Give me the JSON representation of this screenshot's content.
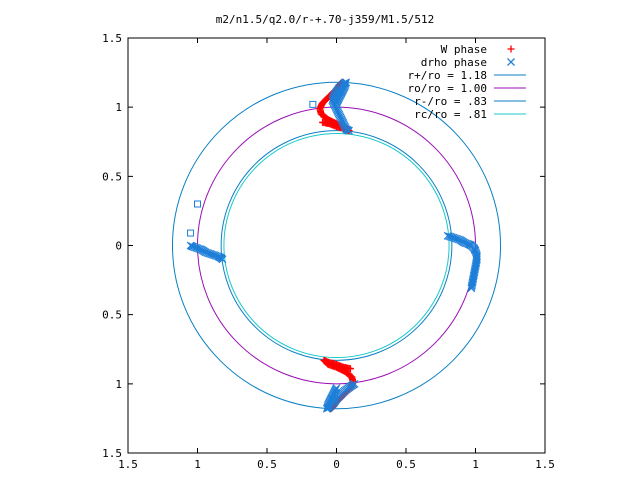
{
  "chart_data": {
    "type": "scatter",
    "title": "m2/n1.5/q2.0/r-+.70-j359/M1.5/512",
    "xlabel": "",
    "ylabel": "",
    "xlim": [
      -1.5,
      1.5
    ],
    "ylim": [
      -1.5,
      1.5
    ],
    "x_tick_labels": [
      "1.5",
      "1",
      "0.5",
      "0",
      "0.5",
      "1",
      "1.5"
    ],
    "y_tick_labels": [
      "1.5",
      "1",
      "0.5",
      "0",
      "0.5",
      "1",
      "1.5"
    ],
    "grid": false,
    "legend_position": "top-right",
    "circles": [
      {
        "name": "r+/ro = 1.18",
        "radius": 1.18,
        "color": "#0a7fc4"
      },
      {
        "name": "ro/ro = 1.00",
        "radius": 1.0,
        "color": "#9b0fb5"
      },
      {
        "name": "r-/ro = .83",
        "radius": 0.83,
        "color": "#0a7fc4"
      },
      {
        "name": "rc/ro = .81",
        "radius": 0.81,
        "color": "#18c8c8"
      }
    ],
    "series": [
      {
        "name": "W phase",
        "marker": "+",
        "color": "#ff0000",
        "segments": [
          [
            [
              -0.1,
              0.89
            ],
            [
              -0.05,
              0.88
            ],
            [
              0.0,
              0.86
            ],
            [
              0.04,
              0.85
            ],
            [
              0.07,
              0.84
            ],
            [
              0.09,
              0.83
            ],
            [
              0.06,
              0.86
            ],
            [
              0.0,
              0.88
            ],
            [
              -0.06,
              0.91
            ],
            [
              -0.11,
              0.95
            ],
            [
              -0.12,
              0.99
            ],
            [
              -0.1,
              1.03
            ],
            [
              -0.06,
              1.07
            ],
            [
              -0.02,
              1.11
            ],
            [
              0.01,
              1.14
            ],
            [
              0.03,
              1.17
            ],
            [
              0.04,
              1.18
            ]
          ],
          [
            [
              0.1,
              -0.89
            ],
            [
              0.05,
              -0.88
            ],
            [
              0.0,
              -0.86
            ],
            [
              -0.04,
              -0.85
            ],
            [
              -0.07,
              -0.84
            ],
            [
              -0.09,
              -0.83
            ],
            [
              -0.06,
              -0.86
            ],
            [
              0.0,
              -0.88
            ],
            [
              0.06,
              -0.91
            ],
            [
              0.11,
              -0.95
            ],
            [
              0.12,
              -0.99
            ],
            [
              0.1,
              -1.03
            ],
            [
              0.06,
              -1.07
            ],
            [
              0.02,
              -1.11
            ],
            [
              -0.01,
              -1.14
            ],
            [
              -0.03,
              -1.17
            ],
            [
              -0.04,
              -1.18
            ]
          ]
        ]
      },
      {
        "name": "drho phase",
        "marker": "x",
        "color": "#1e7fd8",
        "segments": [
          [
            [
              0.0,
              1.03
            ],
            [
              0.02,
              1.07
            ],
            [
              0.04,
              1.11
            ],
            [
              0.06,
              1.15
            ],
            [
              0.07,
              1.18
            ],
            [
              0.05,
              1.17
            ],
            [
              0.02,
              1.14
            ],
            [
              0.0,
              1.11
            ],
            [
              -0.02,
              1.08
            ],
            [
              -0.03,
              1.05
            ],
            [
              0.07,
              0.84
            ],
            [
              0.09,
              0.83
            ]
          ],
          [
            [
              0.8,
              0.07
            ],
            [
              0.83,
              0.06
            ],
            [
              0.86,
              0.05
            ],
            [
              0.89,
              0.04
            ],
            [
              0.92,
              0.02
            ],
            [
              0.95,
              0.01
            ],
            [
              0.97,
              0.0
            ],
            [
              0.99,
              -0.02
            ],
            [
              1.0,
              -0.04
            ],
            [
              1.01,
              -0.07
            ],
            [
              1.01,
              -0.1
            ],
            [
              0.97,
              -0.31
            ]
          ],
          [
            [
              -1.05,
              0.0
            ],
            [
              -1.03,
              -0.01
            ],
            [
              -1.0,
              -0.02
            ],
            [
              -0.97,
              -0.03
            ],
            [
              -0.94,
              -0.05
            ],
            [
              -0.91,
              -0.06
            ],
            [
              -0.88,
              -0.07
            ],
            [
              -0.85,
              -0.08
            ],
            [
              -0.83,
              -0.09
            ],
            [
              -0.82,
              -0.1
            ]
          ],
          [
            [
              0.0,
              -1.03
            ],
            [
              -0.02,
              -1.07
            ],
            [
              -0.04,
              -1.11
            ],
            [
              -0.06,
              -1.15
            ],
            [
              -0.07,
              -1.18
            ],
            [
              -0.05,
              -1.17
            ],
            [
              -0.02,
              -1.14
            ],
            [
              0.0,
              -1.11
            ],
            [
              0.03,
              -1.08
            ],
            [
              0.06,
              -1.05
            ],
            [
              0.1,
              -1.02
            ],
            [
              0.13,
              -1.0
            ]
          ]
        ]
      },
      {
        "name": "",
        "marker": "square",
        "color": "#1e7fd8",
        "segments": [
          [
            [
              -1.0,
              0.3
            ],
            [
              -1.05,
              0.09
            ],
            [
              -0.17,
              1.02
            ]
          ]
        ]
      }
    ]
  }
}
